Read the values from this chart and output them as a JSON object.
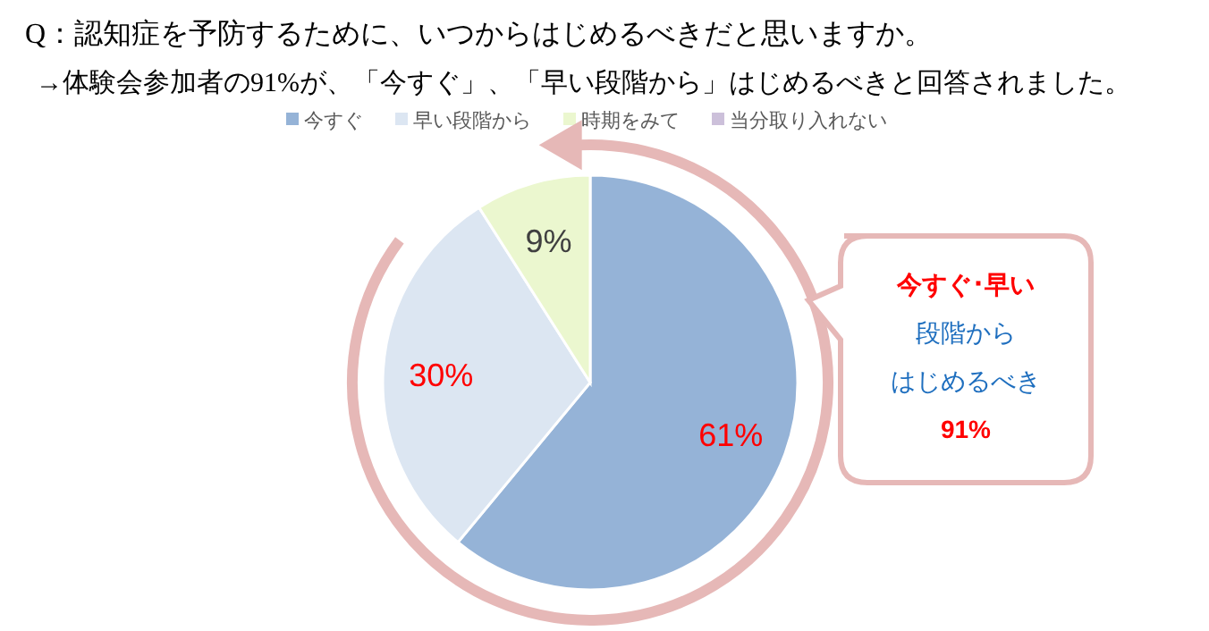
{
  "chart_data": {
    "type": "pie",
    "title": "Q：認知症を予防するために、いつからはじめるべきだと思いますか。",
    "subtitle": "→体験会参加者の91%が、「今すぐ」、「早い段階から」はじめるべきと回答されました。",
    "categories": [
      "今すぐ",
      "早い段階から",
      "時期をみて",
      "当分取り入れない"
    ],
    "values": [
      61,
      30,
      9,
      0
    ],
    "colors": [
      "#95b3d7",
      "#dce6f2",
      "#ebf7cf",
      "#ccc0da"
    ],
    "value_labels": [
      "61%",
      "30%",
      "9%",
      null
    ],
    "legend": "top",
    "annotations": [
      "今すぐ･早い",
      "段階から",
      "はじめるべき",
      "91%"
    ]
  }
}
